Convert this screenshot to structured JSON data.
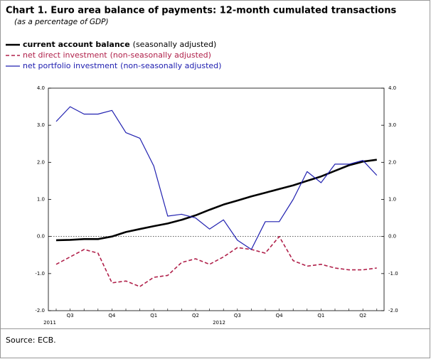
{
  "chart_data": {
    "type": "line",
    "title": "Chart 1. Euro area balance of payments: 12-month cumulated transactions",
    "subtitle": "(as a percentage of GDP)",
    "source": "Source: ECB.",
    "categories": [
      null,
      "Q3",
      null,
      null,
      "Q4",
      null,
      null,
      "Q1",
      null,
      null,
      "Q2",
      null,
      null,
      "Q3",
      null,
      null,
      "Q4",
      null,
      null,
      "Q1",
      null,
      null,
      "Q2",
      null
    ],
    "years": [
      "2011",
      "2012"
    ],
    "ylim": [
      -2,
      4
    ],
    "yticks": [
      {
        "value": 4,
        "label": "4.0"
      },
      {
        "value": 3,
        "label": "3.0"
      },
      {
        "value": 2,
        "label": "2.0"
      },
      {
        "value": 1,
        "label": "1.0"
      },
      {
        "value": 0,
        "label": "0.0"
      },
      {
        "value": -1,
        "label": "-1.0"
      },
      {
        "value": -2,
        "label": "-2.0"
      }
    ],
    "y2lim": [
      -2,
      4
    ],
    "y2ticks": [
      {
        "value": 4,
        "label": "4.0"
      },
      {
        "value": 3,
        "label": "3.0"
      },
      {
        "value": 2,
        "label": "2.0"
      },
      {
        "value": 1,
        "label": "1.0"
      },
      {
        "value": 0,
        "label": "0.0"
      },
      {
        "value": -1,
        "label": "-1.0"
      },
      {
        "value": -2,
        "label": "-2.0"
      }
    ],
    "series": [
      {
        "name": "current account balance",
        "qualifier": "(seasonally adjusted)",
        "color": "#000000",
        "style": "solid-thick",
        "values": [
          -0.1,
          -0.09,
          -0.07,
          -0.07,
          0.0,
          0.12,
          0.2,
          0.28,
          0.35,
          0.45,
          0.57,
          0.72,
          0.86,
          0.97,
          1.08,
          1.18,
          1.28,
          1.38,
          1.5,
          1.62,
          1.77,
          1.92,
          2.02,
          2.07
        ]
      },
      {
        "name": "net direct investment",
        "qualifier": "(non-seasonally adjusted)",
        "color": "#b0204a",
        "style": "dashed",
        "values": [
          -0.75,
          -0.55,
          -0.35,
          -0.45,
          -1.25,
          -1.2,
          -1.35,
          -1.1,
          -1.05,
          -0.7,
          -0.6,
          -0.75,
          -0.55,
          -0.3,
          -0.35,
          -0.45,
          0.0,
          -0.65,
          -0.8,
          -0.75,
          -0.85,
          -0.9,
          -0.9,
          -0.85
        ]
      },
      {
        "name": "net portfolio investment",
        "qualifier": "(non-seasonally adjusted)",
        "color": "#2020b0",
        "style": "solid",
        "values": [
          3.1,
          3.5,
          3.3,
          3.3,
          3.4,
          2.8,
          2.65,
          1.9,
          0.55,
          0.6,
          0.5,
          0.2,
          0.45,
          -0.1,
          -0.35,
          0.4,
          0.4,
          1.0,
          1.75,
          1.45,
          1.95,
          1.95,
          2.05,
          1.65
        ]
      }
    ]
  }
}
